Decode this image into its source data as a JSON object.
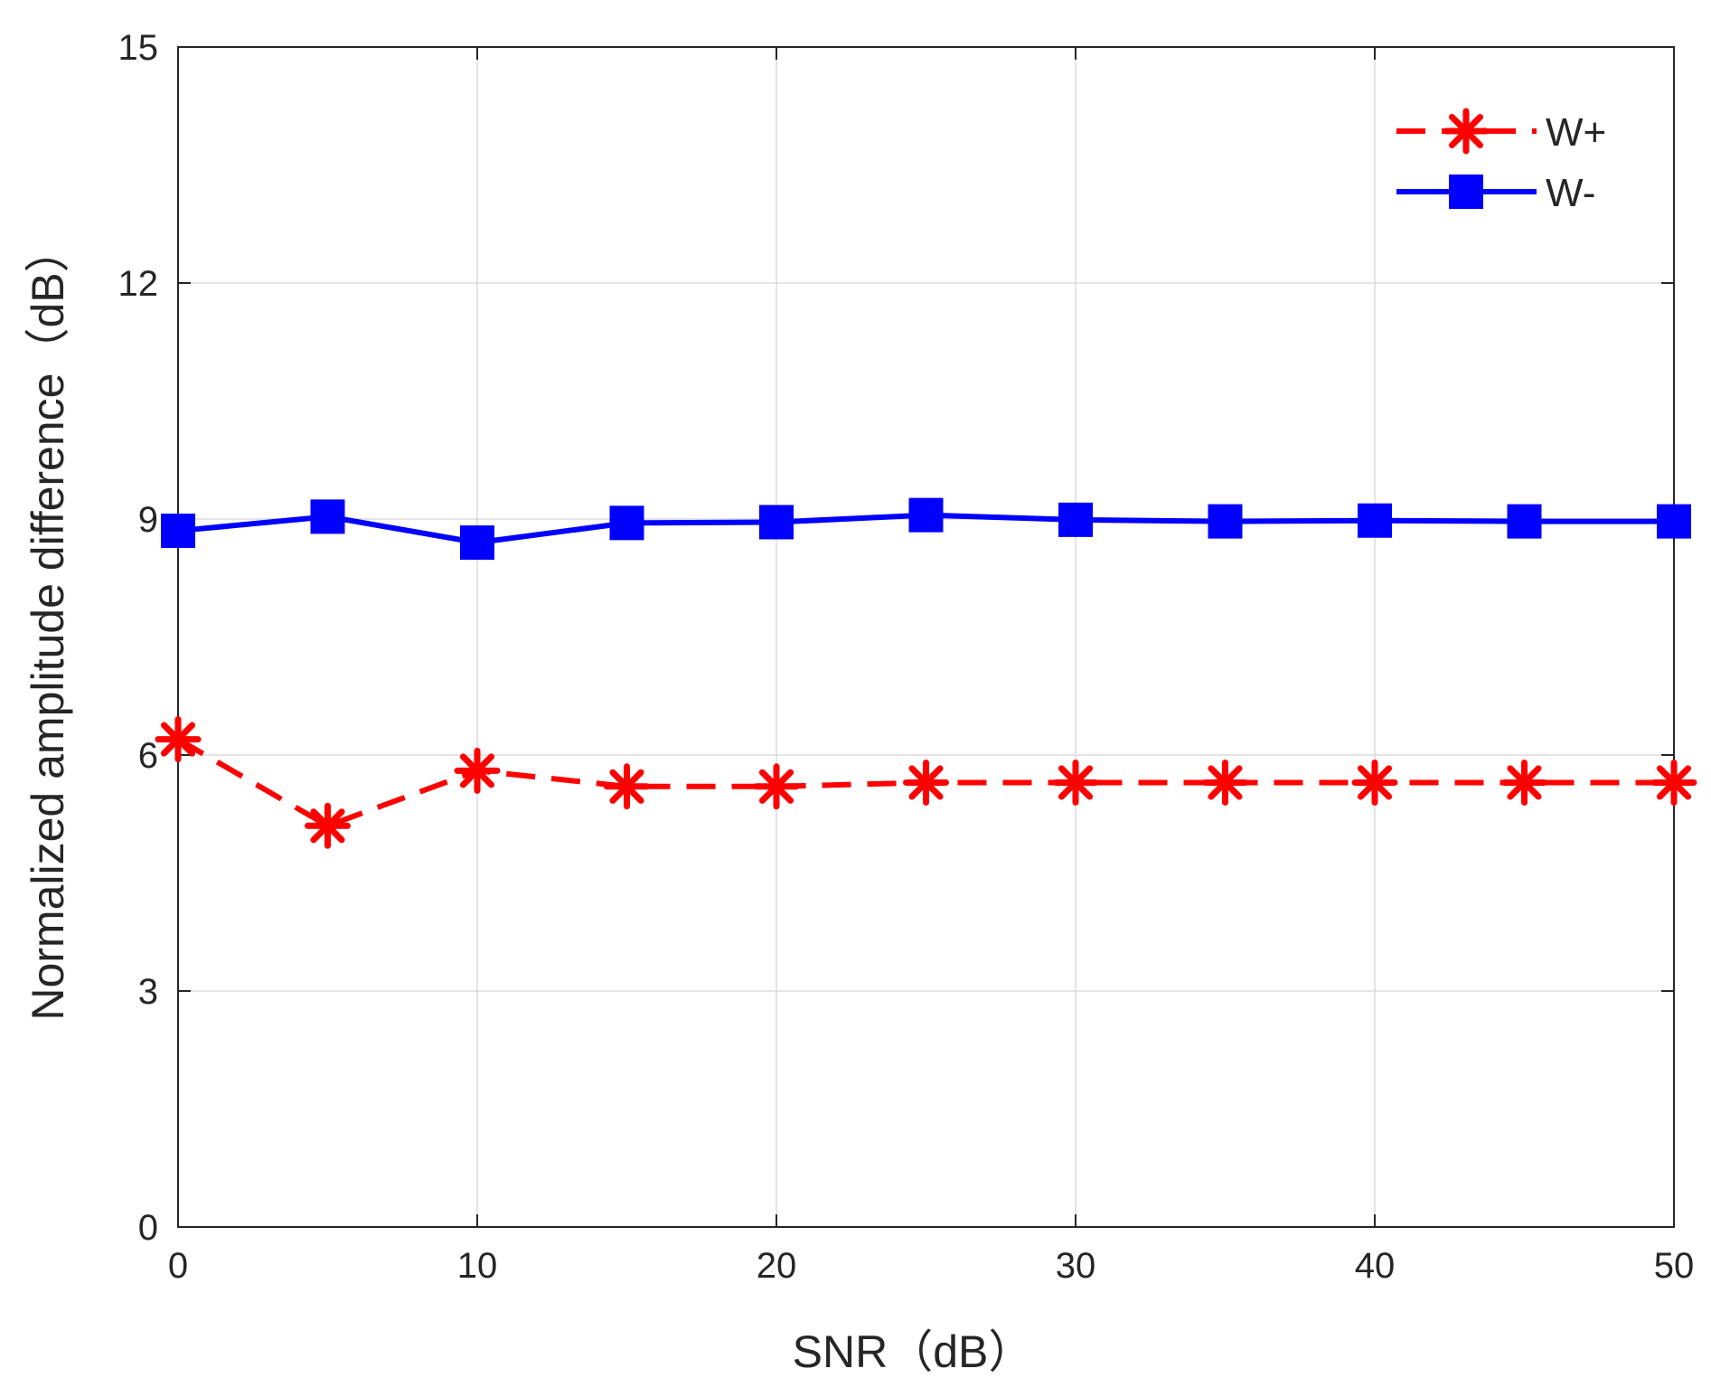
{
  "chart_data": {
    "type": "line",
    "xlabel": "SNR（dB）",
    "ylabel": "Normalized amplitude difference（dB）",
    "xlim": [
      0,
      50
    ],
    "ylim": [
      0,
      15
    ],
    "x_ticks": [
      "0",
      "10",
      "20",
      "30",
      "40",
      "50"
    ],
    "y_ticks": [
      "0",
      "3",
      "6",
      "9",
      "12",
      "15"
    ],
    "grid": true,
    "legend_position": "top-right",
    "x": [
      0,
      5,
      10,
      15,
      20,
      25,
      30,
      35,
      40,
      45,
      50
    ],
    "series": [
      {
        "name": "W+",
        "color": "#ff0000",
        "line_style": "dashed",
        "marker": "asterisk",
        "values": [
          6.2,
          5.1,
          5.8,
          5.6,
          5.6,
          5.65,
          5.65,
          5.65,
          5.65,
          5.65,
          5.65
        ]
      },
      {
        "name": "W-",
        "color": "#0000ff",
        "line_style": "solid",
        "marker": "square",
        "values": [
          8.85,
          9.03,
          8.7,
          8.95,
          8.96,
          9.05,
          8.99,
          8.97,
          8.98,
          8.97,
          8.97
        ]
      }
    ]
  }
}
